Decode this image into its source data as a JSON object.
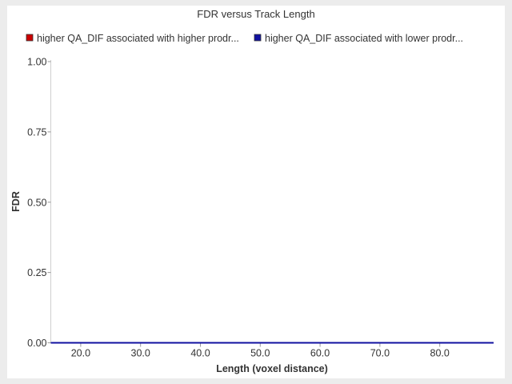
{
  "chart_data": {
    "type": "line",
    "title": "FDR versus Track Length",
    "xlabel": "Length (voxel distance)",
    "ylabel": "FDR",
    "xlim": [
      15.0,
      89.0
    ],
    "ylim": [
      0.0,
      1.0
    ],
    "x_ticks": [
      "20.0",
      "30.0",
      "40.0",
      "50.0",
      "60.0",
      "70.0",
      "80.0"
    ],
    "y_ticks": [
      "0.00",
      "0.25",
      "0.50",
      "0.75",
      "1.00"
    ],
    "grid": false,
    "legend_position": "top",
    "series": [
      {
        "name": "higher QA_DIF associated with higher prodr...",
        "color": "#cc0000",
        "x": [
          15.0,
          89.0
        ],
        "y": [
          0.0,
          0.0
        ]
      },
      {
        "name": "higher QA_DIF associated with lower prodr...",
        "color": "#1010a0",
        "x": [
          15.0,
          89.0
        ],
        "y": [
          0.0,
          0.0
        ]
      }
    ]
  }
}
